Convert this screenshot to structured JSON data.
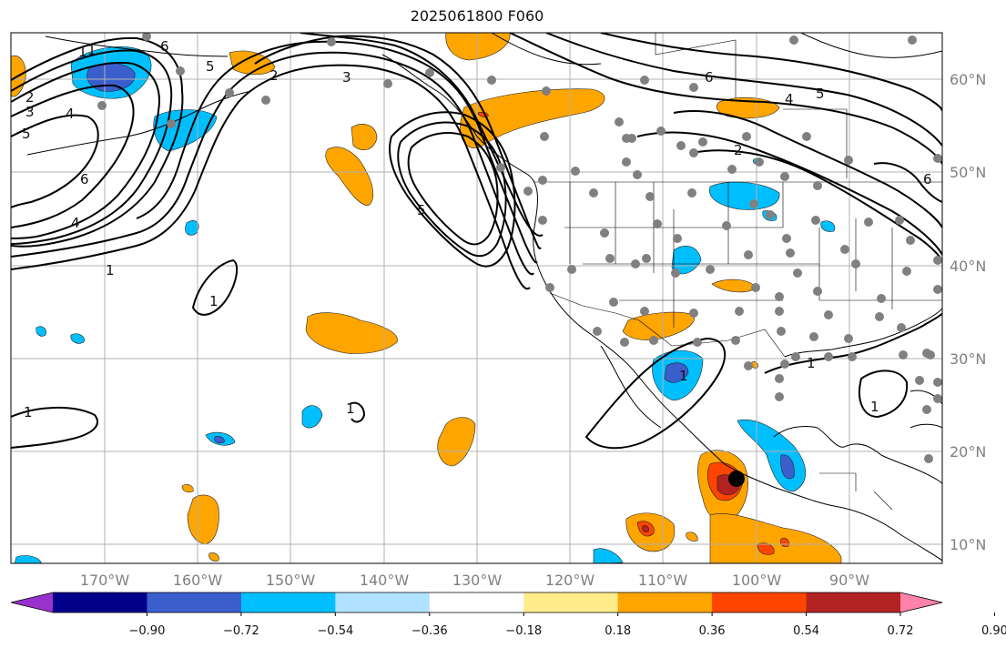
{
  "title": "2025061800 F060",
  "lon_labels": [
    "170°W",
    "160°W",
    "150°W",
    "140°W",
    "130°W",
    "120°W",
    "110°W",
    "100°W",
    "90°W"
  ],
  "lat_labels": [
    "60°N",
    "50°N",
    "40°N",
    "30°N",
    "20°N",
    "10°N"
  ],
  "colorbar": {
    "colors": [
      "#9932cc",
      "#00008b",
      "#3a5fcd",
      "#00bfff",
      "#b0e2ff",
      "#ffffff",
      "#ffec8b",
      "#ffa500",
      "#ff4500",
      "#b22222",
      "#ff82ab"
    ],
    "tick_labels": [
      "−0.90",
      "−0.72",
      "−0.54",
      "−0.36",
      "−0.18",
      "0.18",
      "0.36",
      "0.54",
      "0.72",
      "0.90"
    ]
  },
  "contour_labels": [
    "1",
    "1",
    "1",
    "1",
    "2",
    "2",
    "3",
    "3",
    "4",
    "4",
    "4",
    "5",
    "5",
    "5",
    "6",
    "6",
    "6",
    "6",
    "1",
    "1",
    "1",
    "1",
    "1",
    "2",
    "5"
  ],
  "colors": {
    "positive": "#ffa500",
    "positive_strong": "#ff4500",
    "max": "#b22222",
    "negative": "#00bfff",
    "negative_strong": "#3a5fcd",
    "station": "#808080",
    "grid": "#b0b0b0"
  }
}
